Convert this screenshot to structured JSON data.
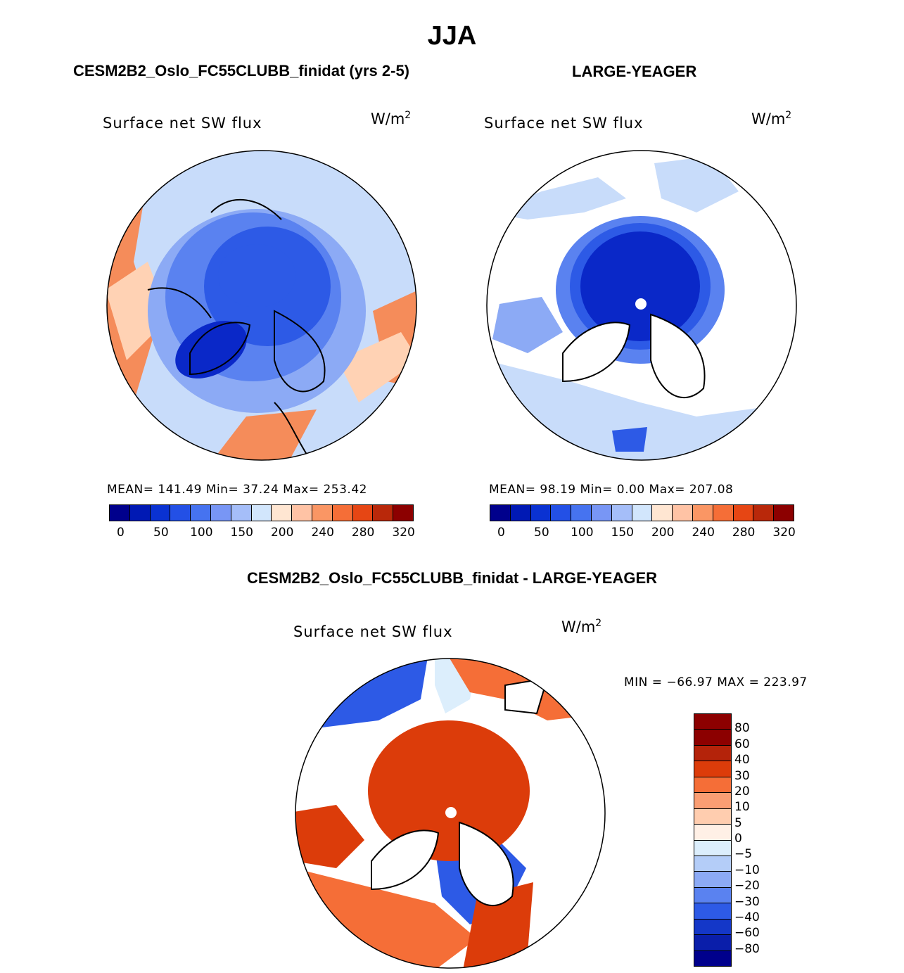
{
  "page": {
    "title": "JJA",
    "top_left_title": "CESM2B2_Oslo_FC55CLUBB_finidat (yrs 2-5)",
    "top_right_title": "LARGE-YEAGER",
    "diff_title": "CESM2B2_Oslo_FC55CLUBB_finidat - LARGE-YEAGER"
  },
  "panels": {
    "left": {
      "variable": "Surface net SW flux",
      "units_base": "W/m",
      "units_exp": "2",
      "stats": "MEAN= 141.49   Min=   37.24   Max= 253.42"
    },
    "right": {
      "variable": "Surface net SW flux",
      "units_base": "W/m",
      "units_exp": "2",
      "stats": "MEAN=  98.19   Min=    0.00   Max= 207.08"
    },
    "diff": {
      "variable": "Surface net SW flux",
      "units_base": "W/m",
      "units_exp": "2",
      "stats": "MIN = −66.97 MAX = 223.97"
    }
  },
  "colorbar_abs": {
    "colors": [
      "#00008c",
      "#0019b4",
      "#0a32d2",
      "#2350e6",
      "#4673f0",
      "#7896f5",
      "#a5bef9",
      "#d2e6fc",
      "#ffe6d2",
      "#ffc3a5",
      "#fa9664",
      "#f56e37",
      "#e64614",
      "#b9280a",
      "#8c0000"
    ],
    "ticks": [
      "0",
      "50",
      "100",
      "150",
      "200",
      "240",
      "280",
      "320"
    ]
  },
  "colorbar_diff": {
    "colors": [
      "#8c0000",
      "#b4230a",
      "#dc3c0a",
      "#f56e37",
      "#fa9e73",
      "#ffcdaf",
      "#fff0e6",
      "#dceefc",
      "#b4cdf8",
      "#8caaf5",
      "#5a82f0",
      "#2d5ae6",
      "#1437c8",
      "#0a1eaa",
      "#00008c"
    ],
    "ticks": [
      "80",
      "60",
      "40",
      "30",
      "20",
      "10",
      "5",
      "0",
      "−5",
      "−10",
      "−20",
      "−30",
      "−40",
      "−60",
      "−80"
    ]
  },
  "map_colors": {
    "deep": "#0a28c8",
    "blue": "#2d5ae6",
    "mid": "#5a82f0",
    "light": "#8caaf5",
    "pale": "#c8dcfa",
    "warm": "#ffd2b4",
    "orange": "#f58c5a",
    "red": "#dc3c0a",
    "white": "#ffffff"
  }
}
